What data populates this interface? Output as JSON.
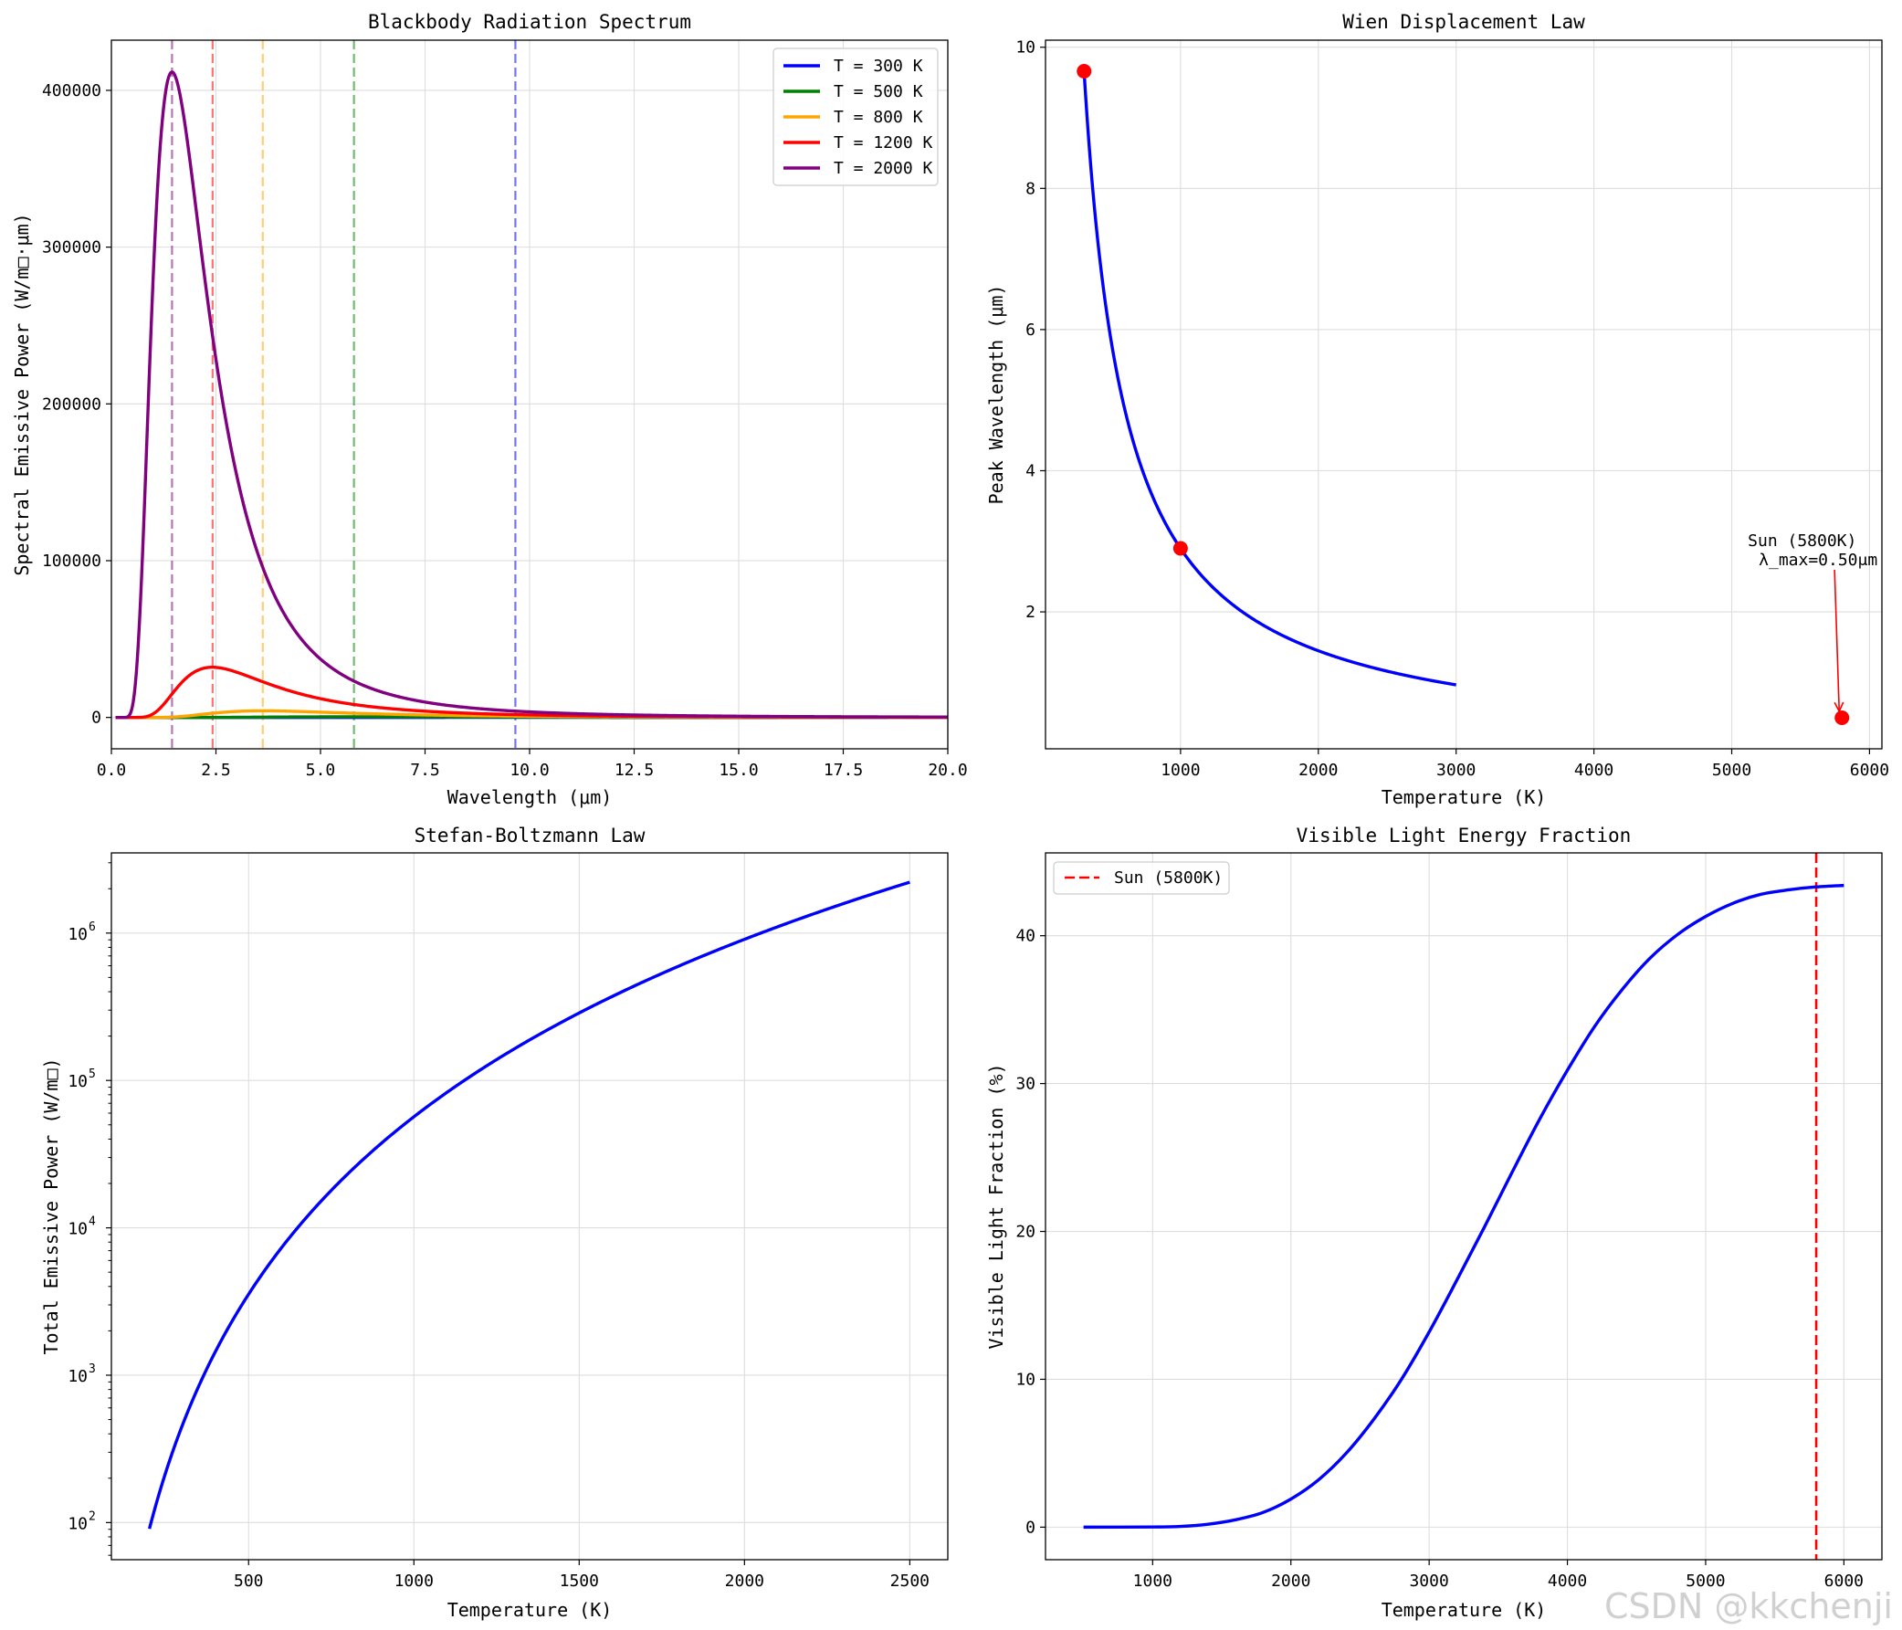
{
  "watermark": "CSDN @kkchenji",
  "chart_data": [
    {
      "id": "blackbody",
      "type": "line",
      "title": "Blackbody Radiation Spectrum",
      "xlabel": "Wavelength (μm)",
      "ylabel": "Spectral Emissive Power (W/m□·μm)",
      "xlim": [
        0,
        20
      ],
      "ylim": [
        -20000,
        432000
      ],
      "xticks": [
        0,
        2.5,
        5,
        7.5,
        10,
        12.5,
        15,
        17.5,
        20
      ],
      "xtick_labels": [
        "0.0",
        "2.5",
        "5.0",
        "7.5",
        "10.0",
        "12.5",
        "15.0",
        "17.5",
        "20.0"
      ],
      "yticks": [
        0,
        100000,
        200000,
        300000,
        400000
      ],
      "ytick_labels": [
        "0",
        "100000",
        "200000",
        "300000",
        "400000"
      ],
      "grid": true,
      "legend": "top-right",
      "series": [
        {
          "name": "T = 300 K",
          "T": 300,
          "color": "#0000ff",
          "peak_line": 9.66
        },
        {
          "name": "T = 500 K",
          "T": 500,
          "color": "#008000",
          "peak_line": 5.8
        },
        {
          "name": "T = 800 K",
          "T": 800,
          "color": "#ffa500",
          "peak_line": 3.62
        },
        {
          "name": "T = 1200 K",
          "T": 1200,
          "color": "#ff0000",
          "peak_line": 2.42
        },
        {
          "name": "T = 2000 K",
          "T": 2000,
          "color": "#800080",
          "peak_line": 1.45
        }
      ]
    },
    {
      "id": "wien",
      "type": "line",
      "title": "Wien Displacement Law",
      "xlabel": "Temperature (K)",
      "ylabel": "Peak Wavelength (μm)",
      "xlim": [
        20,
        6090
      ],
      "ylim": [
        0.06,
        10.1
      ],
      "xticks": [
        1000,
        2000,
        3000,
        4000,
        5000,
        6000
      ],
      "xtick_labels": [
        "1000",
        "2000",
        "3000",
        "4000",
        "5000",
        "6000"
      ],
      "yticks": [
        2,
        4,
        6,
        8,
        10
      ],
      "ytick_labels": [
        "2",
        "4",
        "6",
        "8",
        "10"
      ],
      "grid": true,
      "curve": {
        "T_from": 300,
        "T_to": 3000,
        "b": 2898,
        "color": "#0000ff"
      },
      "points": [
        {
          "x": 300,
          "y": 9.66
        },
        {
          "x": 1000,
          "y": 2.9
        },
        {
          "x": 5800,
          "y": 0.5
        }
      ],
      "point_color": "#ff0000",
      "annotation": {
        "line1": "Sun (5800K)",
        "line2": "λ_max=0.50μm",
        "text_x": 5150,
        "text_y": 2.7,
        "arrow_to_x": 5800,
        "arrow_to_y": 0.5,
        "color": "#ff0000"
      }
    },
    {
      "id": "stefan",
      "type": "line",
      "title": "Stefan-Boltzmann Law",
      "xlabel": "Temperature (K)",
      "ylabel": "Total Emissive Power (W/m□)",
      "xscale": "linear",
      "yscale": "log",
      "xlim": [
        85,
        2615
      ],
      "ylim": [
        56,
        3500000
      ],
      "xticks": [
        500,
        1000,
        1500,
        2000,
        2500
      ],
      "xtick_labels": [
        "500",
        "1000",
        "1500",
        "2000",
        "2500"
      ],
      "yticks": [
        100,
        1000,
        10000,
        100000,
        1000000
      ],
      "ytick_base": "10",
      "ytick_exponents": [
        "2",
        "3",
        "4",
        "5",
        "6"
      ],
      "grid": true,
      "curve": {
        "T_from": 200,
        "T_to": 2500,
        "sigma": 5.67e-08,
        "color": "#0000ff"
      }
    },
    {
      "id": "visible",
      "type": "line",
      "title": "Visible Light Energy Fraction",
      "xlabel": "Temperature (K)",
      "ylabel": "Visible Light Fraction (%)",
      "xlim": [
        225,
        6275
      ],
      "ylim": [
        -2.2,
        45.6
      ],
      "xticks": [
        1000,
        2000,
        3000,
        4000,
        5000,
        6000
      ],
      "xtick_labels": [
        "1000",
        "2000",
        "3000",
        "4000",
        "5000",
        "6000"
      ],
      "yticks": [
        0,
        10,
        20,
        30,
        40
      ],
      "ytick_labels": [
        "0",
        "10",
        "20",
        "30",
        "40"
      ],
      "grid": true,
      "legend": "top-left",
      "x": [
        500,
        1000,
        1200,
        1400,
        1600,
        1800,
        2000,
        2200,
        2400,
        2600,
        2800,
        3000,
        3200,
        3400,
        3600,
        3800,
        4000,
        4200,
        4400,
        4600,
        4800,
        5000,
        5200,
        5400,
        5600,
        5800,
        6000
      ],
      "y": [
        0,
        0.01,
        0.05,
        0.2,
        0.5,
        1.0,
        1.9,
        3.2,
        5.0,
        7.3,
        10.0,
        13.2,
        16.7,
        20.3,
        24.0,
        27.6,
        30.9,
        33.9,
        36.4,
        38.5,
        40.1,
        41.3,
        42.2,
        42.8,
        43.1,
        43.3,
        43.4
      ],
      "curve_color": "#0000ff",
      "vline": {
        "x": 5800,
        "label": "Sun (5800K)",
        "color": "#ff0000"
      }
    }
  ]
}
